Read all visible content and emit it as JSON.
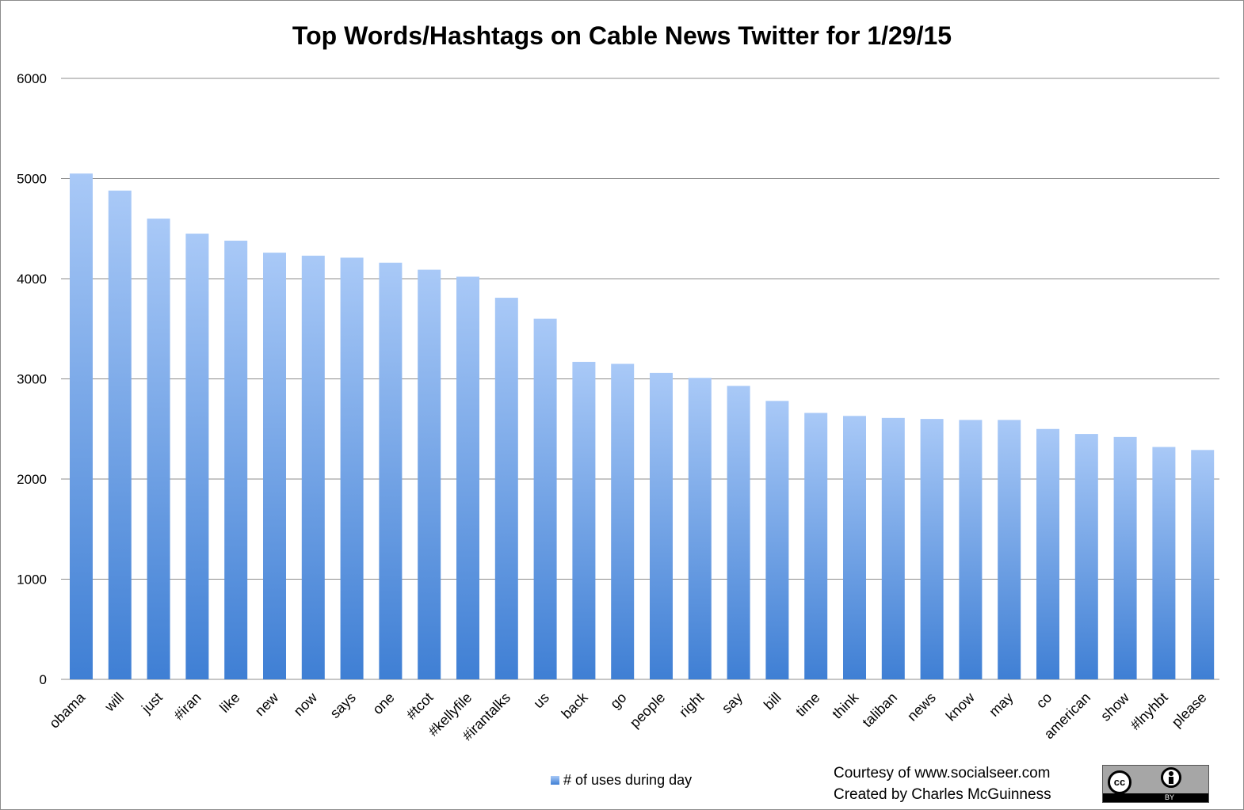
{
  "chart_data": {
    "type": "bar",
    "title": "Top Words/Hashtags on Cable News Twitter for 1/29/15",
    "xlabel": "",
    "ylabel": "",
    "ylim": [
      0,
      6000
    ],
    "yticks": [
      "0",
      "1000",
      "2000",
      "3000",
      "4000",
      "5000",
      "6000"
    ],
    "grid": true,
    "legend_position": "bottom-center",
    "categories": [
      "obama",
      "will",
      "just",
      "#iran",
      "like",
      "new",
      "now",
      "says",
      "one",
      "#tcot",
      "#kellyfile",
      "#irantalks",
      "us",
      "back",
      "go",
      "people",
      "right",
      "say",
      "bill",
      "time",
      "think",
      "taliban",
      "news",
      "know",
      "may",
      "co",
      "american",
      "show",
      "#lnyhbt",
      "please"
    ],
    "series": [
      {
        "name": "# of uses during day",
        "values": [
          5050,
          4880,
          4600,
          4450,
          4380,
          4260,
          4230,
          4210,
          4160,
          4090,
          4020,
          3810,
          3600,
          3170,
          3150,
          3060,
          3010,
          2930,
          2780,
          2660,
          2630,
          2610,
          2600,
          2590,
          2590,
          2500,
          2450,
          2420,
          2320,
          2290
        ]
      }
    ],
    "colors": {
      "bar_top": "#a9c9f7",
      "bar_bottom": "#3f7fd4",
      "gridline": "#8c8c8c"
    }
  },
  "footer": {
    "credit_line1": "Courtesy of www.socialseer.com",
    "credit_line2": "Created by Charles McGuinness",
    "license_cc": "cc",
    "license_by": "BY"
  }
}
